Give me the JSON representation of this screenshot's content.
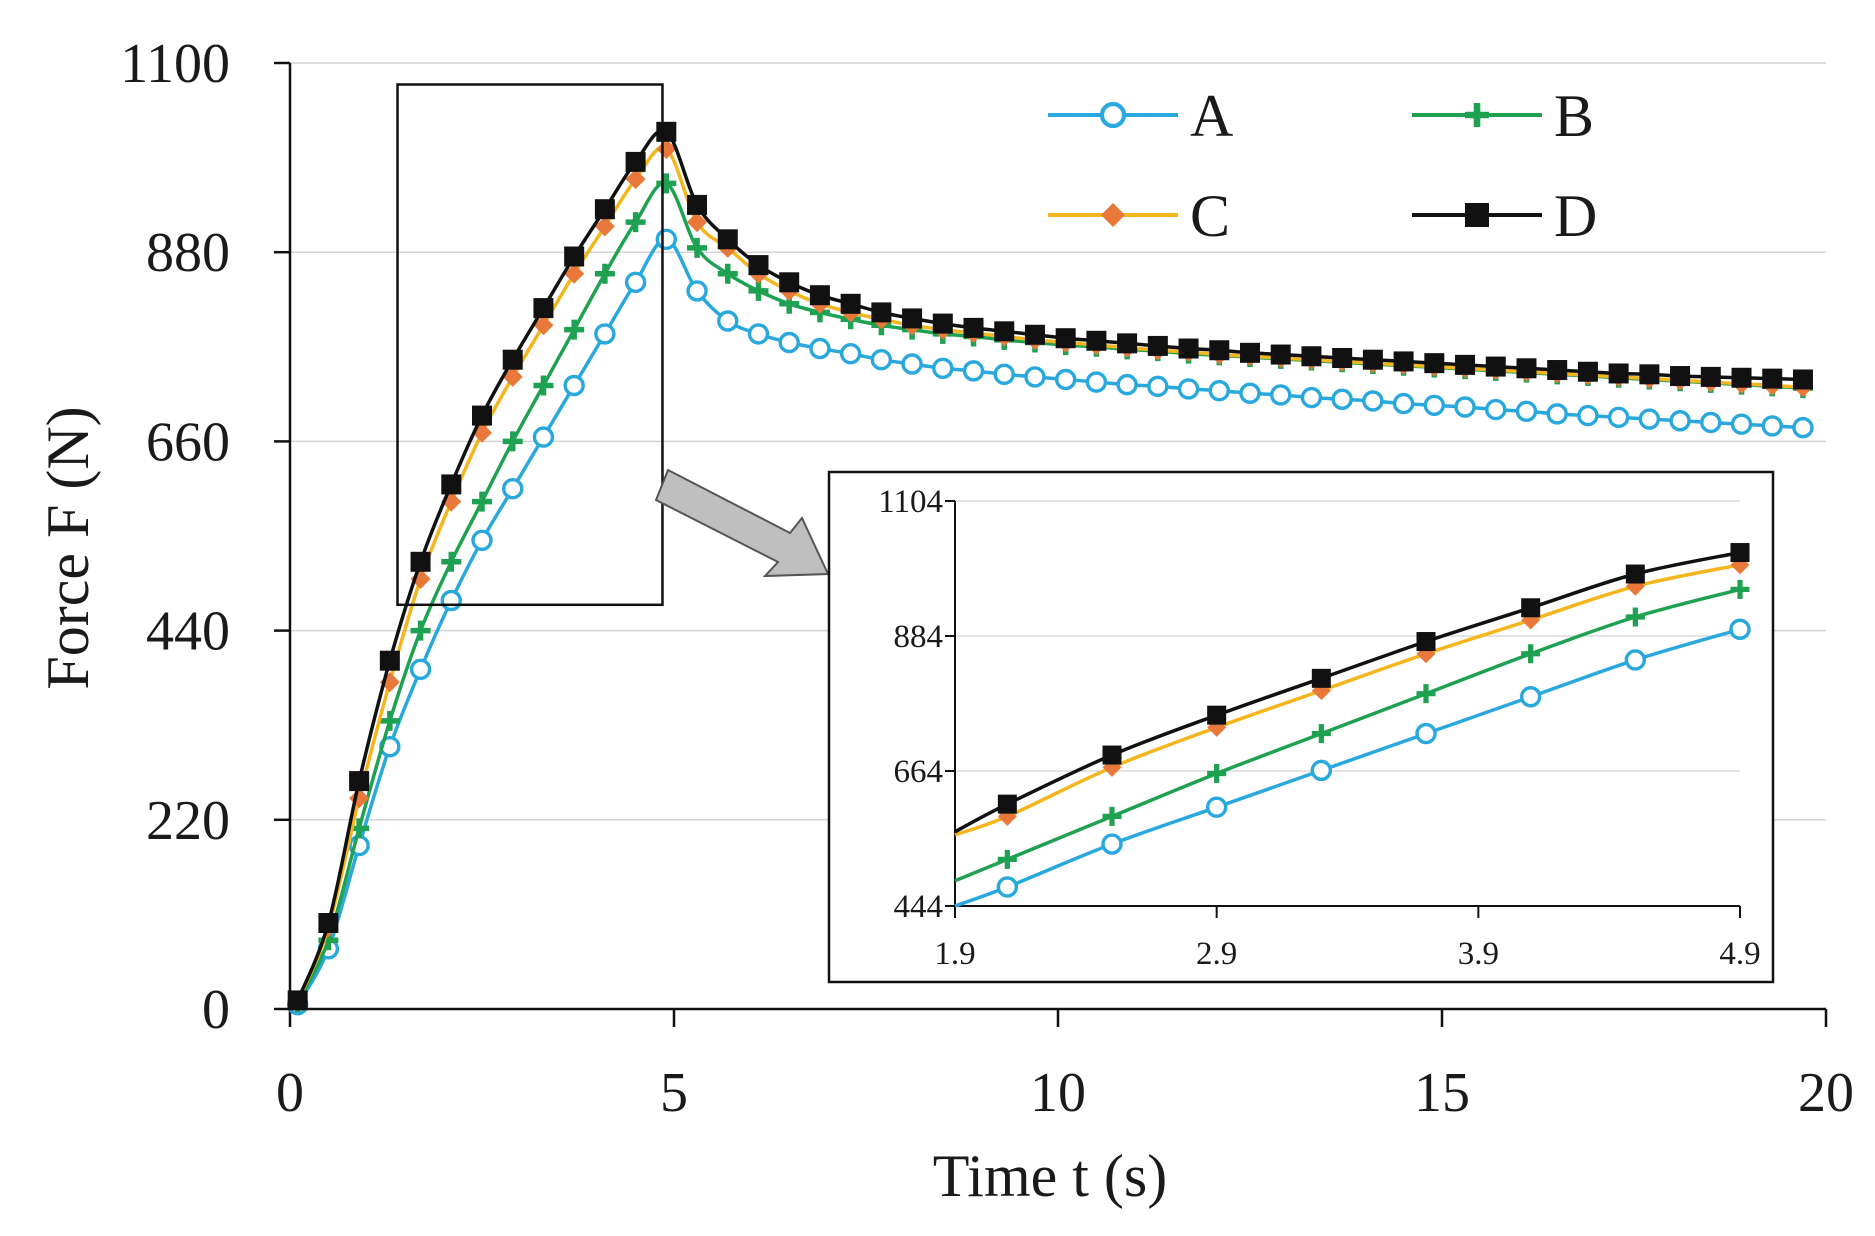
{
  "chart_data": [
    {
      "type": "line",
      "title": "",
      "xlabel": "Time t (s)",
      "ylabel": "Force F (N)",
      "xlim": [
        0,
        20
      ],
      "ylim": [
        0,
        1100
      ],
      "xticks": [
        0,
        5,
        10,
        15,
        20
      ],
      "yticks": [
        0,
        220,
        440,
        660,
        880,
        1100
      ],
      "grid": "horizontal",
      "legend": "top-right",
      "series": [
        {
          "name": "A",
          "color": "#29a8de",
          "marker": "open-circle",
          "x": [
            0.1,
            0.5,
            0.9,
            1.3,
            1.7,
            2.1,
            2.5,
            2.9,
            3.3,
            3.7,
            4.1,
            4.5,
            4.9,
            5.3,
            5.7,
            6.1,
            6.5,
            6.9,
            7.3,
            7.7,
            8.1,
            8.5,
            8.9,
            9.3,
            9.7,
            10.1,
            10.5,
            10.9,
            11.3,
            11.7,
            12.1,
            12.5,
            12.9,
            13.3,
            13.7,
            14.1,
            14.5,
            14.9,
            15.3,
            15.7,
            16.1,
            16.5,
            16.9,
            17.3,
            17.7,
            18.1,
            18.5,
            18.9,
            19.3,
            19.7
          ],
          "y": [
            5,
            70,
            190,
            305,
            395,
            475,
            545,
            605,
            665,
            725,
            785,
            845,
            895,
            835,
            800,
            785,
            775,
            768,
            762,
            755,
            750,
            745,
            742,
            738,
            735,
            732,
            729,
            726,
            724,
            721,
            719,
            716,
            714,
            711,
            709,
            707,
            704,
            702,
            700,
            697,
            695,
            692,
            690,
            688,
            686,
            684,
            682,
            680,
            678,
            676
          ]
        },
        {
          "name": "B",
          "color": "#1fa152",
          "marker": "plus",
          "x": [
            0.1,
            0.5,
            0.9,
            1.3,
            1.7,
            2.1,
            2.5,
            2.9,
            3.3,
            3.7,
            4.1,
            4.5,
            4.9,
            5.3,
            5.7,
            6.1,
            6.5,
            6.9,
            7.3,
            7.7,
            8.1,
            8.5,
            8.9,
            9.3,
            9.7,
            10.1,
            10.5,
            10.9,
            11.3,
            11.7,
            12.1,
            12.5,
            12.9,
            13.3,
            13.7,
            14.1,
            14.5,
            14.9,
            15.3,
            15.7,
            16.1,
            16.5,
            16.9,
            17.3,
            17.7,
            18.1,
            18.5,
            18.9,
            19.3,
            19.7
          ],
          "y": [
            8,
            80,
            210,
            335,
            440,
            520,
            590,
            660,
            725,
            790,
            855,
            915,
            960,
            885,
            855,
            835,
            820,
            810,
            802,
            795,
            790,
            785,
            782,
            778,
            775,
            772,
            770,
            767,
            765,
            762,
            760,
            758,
            756,
            754,
            752,
            750,
            748,
            746,
            744,
            742,
            740,
            738,
            736,
            734,
            732,
            730,
            728,
            726,
            724,
            722
          ]
        },
        {
          "name": "C",
          "color": "#f5b51c",
          "marker": "diamond",
          "marker_color": "#e8793b",
          "x": [
            0.1,
            0.5,
            0.9,
            1.3,
            1.7,
            2.1,
            2.5,
            2.9,
            3.3,
            3.7,
            4.1,
            4.5,
            4.9,
            5.3,
            5.7,
            6.1,
            6.5,
            6.9,
            7.3,
            7.7,
            8.1,
            8.5,
            8.9,
            9.3,
            9.7,
            10.1,
            10.5,
            10.9,
            11.3,
            11.7,
            12.1,
            12.5,
            12.9,
            13.3,
            13.7,
            14.1,
            14.5,
            14.9,
            15.3,
            15.7,
            16.1,
            16.5,
            16.9,
            17.3,
            17.7,
            18.1,
            18.5,
            18.9,
            19.3,
            19.7
          ],
          "y": [
            9,
            95,
            245,
            380,
            500,
            590,
            670,
            735,
            795,
            855,
            910,
            965,
            1000,
            915,
            885,
            855,
            835,
            820,
            810,
            802,
            795,
            790,
            786,
            782,
            778,
            775,
            772,
            769,
            766,
            764,
            761,
            759,
            757,
            755,
            753,
            751,
            749,
            747,
            745,
            743,
            741,
            739,
            737,
            735,
            733,
            731,
            729,
            727,
            725,
            723
          ]
        },
        {
          "name": "D",
          "color": "#111111",
          "marker": "square",
          "x": [
            0.1,
            0.5,
            0.9,
            1.3,
            1.7,
            2.1,
            2.5,
            2.9,
            3.3,
            3.7,
            4.1,
            4.5,
            4.9,
            5.3,
            5.7,
            6.1,
            6.5,
            6.9,
            7.3,
            7.7,
            8.1,
            8.5,
            8.9,
            9.3,
            9.7,
            10.1,
            10.5,
            10.9,
            11.3,
            11.7,
            12.1,
            12.5,
            12.9,
            13.3,
            13.7,
            14.1,
            14.5,
            14.9,
            15.3,
            15.7,
            16.1,
            16.5,
            16.9,
            17.3,
            17.7,
            18.1,
            18.5,
            18.9,
            19.3,
            19.7
          ],
          "y": [
            10,
            100,
            265,
            405,
            520,
            610,
            690,
            755,
            815,
            875,
            930,
            985,
            1020,
            935,
            895,
            865,
            845,
            830,
            820,
            810,
            803,
            797,
            792,
            788,
            784,
            780,
            777,
            774,
            771,
            768,
            766,
            763,
            761,
            759,
            757,
            755,
            753,
            751,
            749,
            747,
            745,
            743,
            741,
            739,
            738,
            736,
            735,
            734,
            733,
            732
          ]
        }
      ],
      "zoom_box": {
        "x": [
          1.4,
          4.85
        ],
        "y": [
          470,
          1075
        ]
      }
    },
    {
      "type": "line",
      "title": "",
      "xlabel": "",
      "ylabel": "",
      "xlim": [
        1.9,
        4.9
      ],
      "ylim": [
        444,
        1104
      ],
      "xticks": [
        "1.9",
        "2.9",
        "3.9",
        "4.9"
      ],
      "yticks": [
        "444",
        "664",
        "884",
        "1104"
      ],
      "grid": "horizontal",
      "series": [
        {
          "name": "A",
          "color": "#29a8de",
          "marker": "open-circle",
          "x": [
            1.9,
            2.1,
            2.5,
            2.9,
            3.3,
            3.7,
            4.1,
            4.5,
            4.9
          ],
          "y": [
            444,
            475,
            545,
            605,
            665,
            725,
            785,
            845,
            895
          ]
        },
        {
          "name": "B",
          "color": "#1fa152",
          "marker": "plus",
          "x": [
            1.9,
            2.1,
            2.5,
            2.9,
            3.3,
            3.7,
            4.1,
            4.5,
            4.9
          ],
          "y": [
            485,
            520,
            590,
            660,
            725,
            790,
            855,
            915,
            960
          ]
        },
        {
          "name": "C",
          "color": "#f5b51c",
          "marker": "diamond",
          "marker_color": "#e8793b",
          "x": [
            1.9,
            2.1,
            2.5,
            2.9,
            3.3,
            3.7,
            4.1,
            4.5,
            4.9
          ],
          "y": [
            560,
            590,
            670,
            735,
            795,
            855,
            910,
            965,
            1000
          ]
        },
        {
          "name": "D",
          "color": "#111111",
          "marker": "square",
          "x": [
            1.9,
            2.1,
            2.5,
            2.9,
            3.3,
            3.7,
            4.1,
            4.5,
            4.9
          ],
          "y": [
            565,
            610,
            690,
            755,
            815,
            875,
            930,
            985,
            1020
          ]
        }
      ]
    }
  ]
}
